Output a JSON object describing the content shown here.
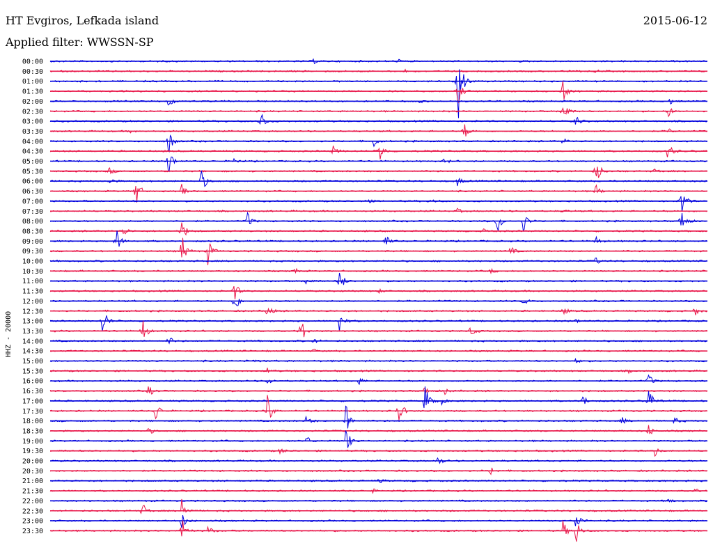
{
  "header": {
    "title": "HT Evgiros, Lefkada island",
    "date": "2015-06-12",
    "filter": "Applied filter: WWSSN-SP"
  },
  "chart_data": {
    "type": "line",
    "title": "HT Evgiros, Lefkada island",
    "date": "2015-06-12",
    "filter": "Applied filter: WWSSN-SP",
    "ylabel": "HHZ - 20000",
    "colors": [
      "#0000dd",
      "#e8174a"
    ],
    "grid": false,
    "legend": "none",
    "traces": [
      {
        "label": "00:00",
        "events": [
          {
            "x": 0.4,
            "amp": 4
          },
          {
            "x": 0.53,
            "amp": 3
          }
        ]
      },
      {
        "label": "00:30",
        "events": [
          {
            "x": 0.54,
            "amp": 2
          },
          {
            "x": 0.83,
            "amp": 2
          }
        ]
      },
      {
        "label": "01:00",
        "events": [
          {
            "x": 0.62,
            "amp": 95
          }
        ]
      },
      {
        "label": "01:30",
        "events": [
          {
            "x": 0.62,
            "amp": 22
          },
          {
            "x": 0.78,
            "amp": 18
          }
        ]
      },
      {
        "label": "02:00",
        "events": [
          {
            "x": 0.18,
            "amp": 12
          },
          {
            "x": 0.56,
            "amp": 3
          },
          {
            "x": 0.94,
            "amp": 8
          }
        ]
      },
      {
        "label": "02:30",
        "events": [
          {
            "x": 0.78,
            "amp": 28
          },
          {
            "x": 0.94,
            "amp": 10
          }
        ]
      },
      {
        "label": "03:00",
        "events": [
          {
            "x": 0.32,
            "amp": 20
          },
          {
            "x": 0.8,
            "amp": 10
          }
        ]
      },
      {
        "label": "03:30",
        "events": [
          {
            "x": 0.12,
            "amp": 3
          },
          {
            "x": 0.63,
            "amp": 14
          },
          {
            "x": 0.94,
            "amp": 5
          }
        ]
      },
      {
        "label": "04:00",
        "events": [
          {
            "x": 0.18,
            "amp": 22
          },
          {
            "x": 0.49,
            "amp": 14
          },
          {
            "x": 0.78,
            "amp": 6
          }
        ]
      },
      {
        "label": "04:30",
        "events": [
          {
            "x": 0.43,
            "amp": 8
          },
          {
            "x": 0.5,
            "amp": 22
          },
          {
            "x": 0.94,
            "amp": 18
          }
        ]
      },
      {
        "label": "05:00",
        "events": [
          {
            "x": 0.18,
            "amp": 26
          },
          {
            "x": 0.28,
            "amp": 6
          },
          {
            "x": 0.6,
            "amp": 5
          }
        ]
      },
      {
        "label": "05:30",
        "events": [
          {
            "x": 0.09,
            "amp": 6
          },
          {
            "x": 0.83,
            "amp": 28
          },
          {
            "x": 0.92,
            "amp": 4
          }
        ]
      },
      {
        "label": "06:00",
        "events": [
          {
            "x": 0.09,
            "amp": 6
          },
          {
            "x": 0.23,
            "amp": 22
          },
          {
            "x": 0.62,
            "amp": 8
          }
        ]
      },
      {
        "label": "06:30",
        "events": [
          {
            "x": 0.13,
            "amp": 28
          },
          {
            "x": 0.2,
            "amp": 10
          },
          {
            "x": 0.83,
            "amp": 10
          }
        ]
      },
      {
        "label": "07:00",
        "events": [
          {
            "x": 0.48,
            "amp": 5
          },
          {
            "x": 0.58,
            "amp": 4
          },
          {
            "x": 0.96,
            "amp": 28
          }
        ]
      },
      {
        "label": "07:30",
        "events": [
          {
            "x": 0.62,
            "amp": 4
          },
          {
            "x": 0.78,
            "amp": 3
          }
        ]
      },
      {
        "label": "08:00",
        "events": [
          {
            "x": 0.3,
            "amp": 14
          },
          {
            "x": 0.68,
            "amp": 22
          },
          {
            "x": 0.72,
            "amp": 18
          },
          {
            "x": 0.96,
            "amp": 26
          }
        ]
      },
      {
        "label": "08:30",
        "events": [
          {
            "x": 0.11,
            "amp": 10
          },
          {
            "x": 0.2,
            "amp": 20
          },
          {
            "x": 0.66,
            "amp": 4
          }
        ]
      },
      {
        "label": "09:00",
        "events": [
          {
            "x": 0.1,
            "amp": 24
          },
          {
            "x": 0.51,
            "amp": 10
          },
          {
            "x": 0.83,
            "amp": 8
          }
        ]
      },
      {
        "label": "09:30",
        "events": [
          {
            "x": 0.2,
            "amp": 28
          },
          {
            "x": 0.24,
            "amp": 22
          },
          {
            "x": 0.7,
            "amp": 8
          }
        ]
      },
      {
        "label": "10:00",
        "events": [
          {
            "x": 0.83,
            "amp": 6
          }
        ]
      },
      {
        "label": "10:30",
        "events": [
          {
            "x": 0.37,
            "amp": 6
          },
          {
            "x": 0.67,
            "amp": 4
          }
        ]
      },
      {
        "label": "11:00",
        "events": [
          {
            "x": 0.39,
            "amp": 8
          },
          {
            "x": 0.44,
            "amp": 22
          }
        ]
      },
      {
        "label": "11:30",
        "events": [
          {
            "x": 0.28,
            "amp": 16
          },
          {
            "x": 0.5,
            "amp": 3
          }
        ]
      },
      {
        "label": "12:00",
        "events": [
          {
            "x": 0.28,
            "amp": 24
          },
          {
            "x": 0.72,
            "amp": 8
          }
        ]
      },
      {
        "label": "12:30",
        "events": [
          {
            "x": 0.33,
            "amp": 12
          },
          {
            "x": 0.78,
            "amp": 8
          },
          {
            "x": 0.98,
            "amp": 8
          }
        ]
      },
      {
        "label": "13:00",
        "events": [
          {
            "x": 0.08,
            "amp": 30
          },
          {
            "x": 0.44,
            "amp": 20
          },
          {
            "x": 0.8,
            "amp": 4
          }
        ]
      },
      {
        "label": "13:30",
        "events": [
          {
            "x": 0.14,
            "amp": 26
          },
          {
            "x": 0.38,
            "amp": 30
          },
          {
            "x": 0.64,
            "amp": 10
          }
        ]
      },
      {
        "label": "14:00",
        "events": [
          {
            "x": 0.18,
            "amp": 8
          },
          {
            "x": 0.4,
            "amp": 4
          }
        ]
      },
      {
        "label": "14:30",
        "events": [
          {
            "x": 0.4,
            "amp": 3
          }
        ]
      },
      {
        "label": "15:00",
        "events": [
          {
            "x": 0.31,
            "amp": 3
          },
          {
            "x": 0.8,
            "amp": 4
          }
        ]
      },
      {
        "label": "15:30",
        "events": [
          {
            "x": 0.33,
            "amp": 4
          },
          {
            "x": 0.88,
            "amp": 2
          }
        ]
      },
      {
        "label": "16:00",
        "events": [
          {
            "x": 0.33,
            "amp": 6
          },
          {
            "x": 0.47,
            "amp": 6
          },
          {
            "x": 0.91,
            "amp": 12
          }
        ]
      },
      {
        "label": "16:30",
        "events": [
          {
            "x": 0.15,
            "amp": 10
          },
          {
            "x": 0.57,
            "amp": 8
          },
          {
            "x": 0.6,
            "amp": 6
          }
        ]
      },
      {
        "label": "17:00",
        "events": [
          {
            "x": 0.57,
            "amp": 26
          },
          {
            "x": 0.59,
            "amp": 18
          },
          {
            "x": 0.81,
            "amp": 10
          },
          {
            "x": 0.91,
            "amp": 26
          }
        ]
      },
      {
        "label": "17:30",
        "events": [
          {
            "x": 0.16,
            "amp": 20
          },
          {
            "x": 0.33,
            "amp": 30
          },
          {
            "x": 0.53,
            "amp": 24
          }
        ]
      },
      {
        "label": "18:00",
        "events": [
          {
            "x": 0.39,
            "amp": 10
          },
          {
            "x": 0.45,
            "amp": 30
          },
          {
            "x": 0.87,
            "amp": 6
          },
          {
            "x": 0.95,
            "amp": 6
          }
        ]
      },
      {
        "label": "18:30",
        "events": [
          {
            "x": 0.15,
            "amp": 6
          },
          {
            "x": 0.91,
            "amp": 10
          }
        ]
      },
      {
        "label": "19:00",
        "events": [
          {
            "x": 0.39,
            "amp": 8
          },
          {
            "x": 0.45,
            "amp": 24
          }
        ]
      },
      {
        "label": "19:30",
        "events": [
          {
            "x": 0.35,
            "amp": 6
          },
          {
            "x": 0.92,
            "amp": 8
          }
        ]
      },
      {
        "label": "20:00",
        "events": [
          {
            "x": 0.59,
            "amp": 8
          }
        ]
      },
      {
        "label": "20:30",
        "events": [
          {
            "x": 0.67,
            "amp": 8
          }
        ]
      },
      {
        "label": "21:00",
        "events": [
          {
            "x": 0.5,
            "amp": 4
          }
        ]
      },
      {
        "label": "21:30",
        "events": [
          {
            "x": 0.49,
            "amp": 3
          },
          {
            "x": 0.98,
            "amp": 4
          }
        ]
      },
      {
        "label": "22:00",
        "events": [
          {
            "x": 0.94,
            "amp": 4
          }
        ]
      },
      {
        "label": "22:30",
        "events": [
          {
            "x": 0.14,
            "amp": 14
          },
          {
            "x": 0.2,
            "amp": 24
          }
        ]
      },
      {
        "label": "23:00",
        "events": [
          {
            "x": 0.2,
            "amp": 14
          },
          {
            "x": 0.8,
            "amp": 20
          }
        ]
      },
      {
        "label": "23:30",
        "events": [
          {
            "x": 0.2,
            "amp": 22
          },
          {
            "x": 0.24,
            "amp": 8
          },
          {
            "x": 0.78,
            "amp": 16
          },
          {
            "x": 0.8,
            "amp": 22
          }
        ]
      }
    ]
  }
}
